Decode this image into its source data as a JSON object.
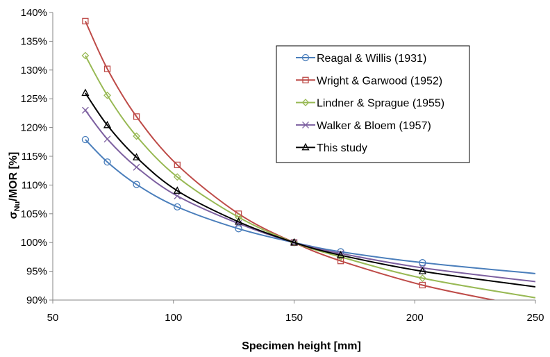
{
  "chart_data": {
    "type": "line",
    "title": "",
    "xlabel": "Specimen height [mm]",
    "ylabel_main": "σ",
    "ylabel_sub": "Nu",
    "ylabel_rest": "/MOR [%]",
    "xlim": [
      50,
      250
    ],
    "ylim": [
      90,
      140
    ],
    "x_ticks": [
      50,
      100,
      150,
      200,
      250
    ],
    "y_ticks": [
      90,
      95,
      100,
      105,
      110,
      115,
      120,
      125,
      130,
      135,
      140
    ],
    "y_tick_suffix": "%",
    "grid": false,
    "legend_position": "top-right",
    "marker_x": [
      63.5,
      72.6,
      84.7,
      101.6,
      127,
      150,
      169.3,
      203.2
    ],
    "series": [
      {
        "name": "Reagal & Willis (1931)",
        "color": "#4a7ebb",
        "marker": "circle",
        "curve": [
          [
            63.5,
            117.9
          ],
          [
            72.6,
            114
          ],
          [
            84.7,
            110.1
          ],
          [
            101.6,
            106.2
          ],
          [
            127,
            102.4
          ],
          [
            150,
            100
          ],
          [
            169.3,
            98.4
          ],
          [
            203.2,
            96.5
          ],
          [
            250,
            94.6
          ]
        ],
        "markers": [
          117.9,
          114.0,
          110.1,
          106.2,
          102.4,
          100.0,
          98.4,
          96.5
        ]
      },
      {
        "name": "Wright & Garwood (1952)",
        "color": "#be4b48",
        "marker": "square",
        "curve": [
          [
            63.5,
            138.5
          ],
          [
            72.6,
            130.2
          ],
          [
            84.7,
            121.9
          ],
          [
            101.6,
            113.5
          ],
          [
            127,
            105
          ],
          [
            150,
            100
          ],
          [
            169.3,
            96.8
          ],
          [
            203.2,
            92.6
          ],
          [
            235,
            89.8
          ]
        ],
        "markers": [
          138.5,
          130.2,
          121.9,
          113.5,
          105.0,
          100.0,
          96.8,
          92.6
        ]
      },
      {
        "name": "Lindner & Sprague (1955)",
        "color": "#98b954",
        "marker": "diamond",
        "curve": [
          [
            63.5,
            132.5
          ],
          [
            72.6,
            125.6
          ],
          [
            84.7,
            118.5
          ],
          [
            101.6,
            111.4
          ],
          [
            127,
            104.4
          ],
          [
            150,
            100
          ],
          [
            169.3,
            97.5
          ],
          [
            203.2,
            93.8
          ],
          [
            250,
            90.4
          ]
        ],
        "markers": [
          132.5,
          125.6,
          118.5,
          111.4,
          104.4,
          100.0,
          97.5,
          93.8
        ]
      },
      {
        "name": "Walker & Bloem (1957)",
        "color": "#7d60a0",
        "marker": "x",
        "curve": [
          [
            63.5,
            123
          ],
          [
            72.6,
            118
          ],
          [
            84.7,
            113.1
          ],
          [
            101.6,
            108.1
          ],
          [
            127,
            103.3
          ],
          [
            150,
            100
          ],
          [
            169.3,
            98.1
          ],
          [
            203.2,
            95.6
          ],
          [
            250,
            93.2
          ]
        ],
        "markers": [
          123.0,
          118.0,
          113.1,
          108.1,
          103.3,
          100.0,
          98.1,
          95.6
        ]
      },
      {
        "name": "This study",
        "color": "#000000",
        "marker": "triangle",
        "curve": [
          [
            63.5,
            126
          ],
          [
            72.6,
            120.4
          ],
          [
            84.7,
            114.8
          ],
          [
            101.6,
            109
          ],
          [
            127,
            103.6
          ],
          [
            150,
            100
          ],
          [
            169.3,
            97.8
          ],
          [
            203.2,
            95
          ],
          [
            250,
            92.3
          ]
        ],
        "markers": [
          126.0,
          120.4,
          114.8,
          109.0,
          103.6,
          100.0,
          97.8,
          95.0
        ]
      }
    ]
  }
}
